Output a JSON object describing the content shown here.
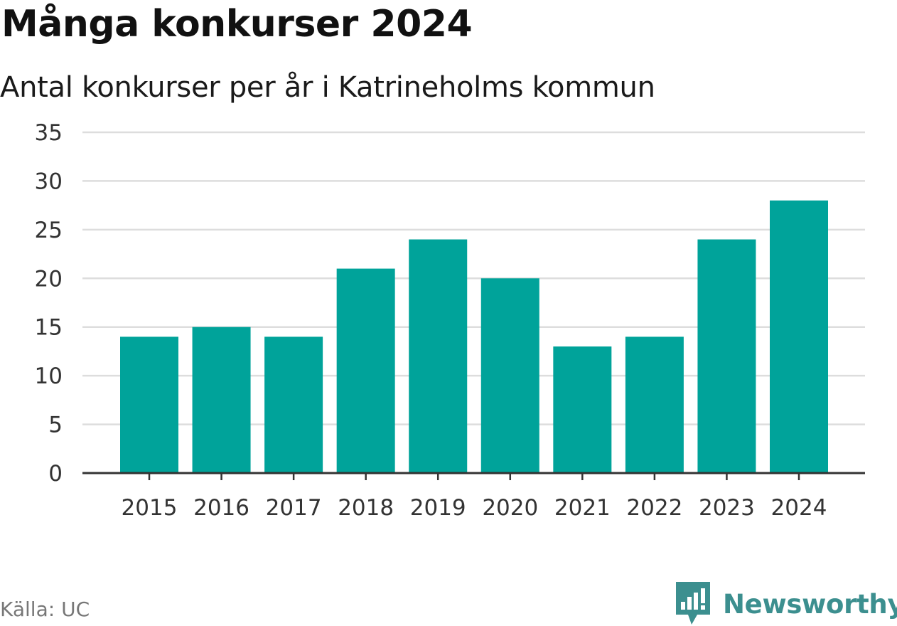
{
  "header": {
    "title": "Många konkurser 2024",
    "subtitle": "Antal konkurser per år i Katrineholms kommun"
  },
  "footer": {
    "source": "Källa: UC",
    "brand": "Newsworthy"
  },
  "colors": {
    "bar": "#00a39a",
    "grid": "#dddddd",
    "axis": "#333333",
    "brand": "#3c8f8f"
  },
  "icons": {
    "brand_logo": "newsworthy-logo-icon"
  },
  "chart_data": {
    "type": "bar",
    "categories": [
      "2015",
      "2016",
      "2017",
      "2018",
      "2019",
      "2020",
      "2021",
      "2022",
      "2023",
      "2024"
    ],
    "values": [
      14,
      15,
      14,
      21,
      24,
      20,
      13,
      14,
      24,
      28
    ],
    "title": "Många konkurser 2024",
    "subtitle": "Antal konkurser per år i Katrineholms kommun",
    "xlabel": "",
    "ylabel": "",
    "ylim": [
      0,
      35
    ],
    "yticks": [
      0,
      5,
      10,
      15,
      20,
      25,
      30,
      35
    ],
    "grid": true,
    "legend": "none"
  }
}
